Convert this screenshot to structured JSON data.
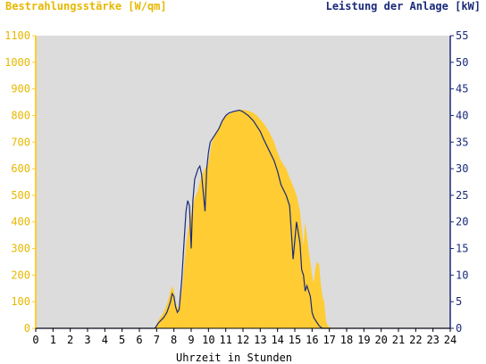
{
  "chart_data": {
    "type": "area",
    "left_axis_label": "Bestrahlungsstärke [W/qm]",
    "right_axis_label": "Leistung der Anlage [kW]",
    "xlabel": "Uhrzeit in Stunden",
    "x_ticks": [
      "0",
      "1",
      "2",
      "3",
      "4",
      "5",
      "6",
      "7",
      "8",
      "9",
      "10",
      "11",
      "12",
      "13",
      "14",
      "15",
      "16",
      "17",
      "18",
      "19",
      "20",
      "21",
      "22",
      "23",
      "24"
    ],
    "y_left_ticks": [
      "0",
      "100",
      "200",
      "300",
      "400",
      "500",
      "600",
      "700",
      "800",
      "900",
      "1000",
      "1100"
    ],
    "y_right_ticks": [
      "0",
      "5",
      "10",
      "15",
      "20",
      "25",
      "30",
      "35",
      "40",
      "45",
      "50",
      "55"
    ],
    "xlim": [
      0,
      24
    ],
    "y_left_lim": [
      0,
      1100
    ],
    "y_right_lim": [
      0,
      55
    ],
    "grid": false,
    "colors": {
      "irradiance_fill": "#ffcc33",
      "power_line": "#1a2a7a",
      "plot_bg": "#dcdcdc",
      "left_axis": "#ffcc33",
      "right_axis": "#1a2a7a",
      "text_left": "#e6b800",
      "text_right": "#1a2a7a",
      "text_x": "#000000"
    },
    "series": [
      {
        "axis": "left",
        "kind": "area",
        "x": [
          0,
          6.9,
          7.1,
          7.4,
          7.6,
          7.8,
          7.9,
          8.0,
          8.1,
          8.2,
          8.3,
          8.5,
          8.7,
          8.8,
          8.9,
          9.0,
          9.1,
          9.2,
          9.4,
          9.5,
          9.6,
          9.8,
          10.0,
          10.1,
          10.2,
          10.4,
          10.6,
          10.8,
          11.0,
          11.2,
          11.5,
          11.8,
          12.0,
          12.3,
          12.6,
          12.8,
          13.0,
          13.2,
          13.5,
          13.8,
          14.0,
          14.2,
          14.5,
          14.7,
          14.9,
          15.1,
          15.3,
          15.5,
          15.6,
          15.7,
          15.8,
          15.9,
          16.0,
          16.1,
          16.2,
          16.3,
          16.4,
          16.5,
          16.6,
          16.7,
          16.8,
          16.9,
          17.0,
          17.1,
          17.3,
          17.5,
          18,
          24
        ],
        "values": [
          0,
          0,
          30,
          60,
          90,
          140,
          160,
          140,
          100,
          80,
          75,
          160,
          310,
          360,
          400,
          430,
          460,
          490,
          520,
          550,
          570,
          600,
          620,
          660,
          700,
          730,
          750,
          775,
          800,
          805,
          815,
          820,
          822,
          818,
          810,
          800,
          785,
          770,
          740,
          700,
          660,
          630,
          600,
          565,
          535,
          500,
          440,
          310,
          400,
          350,
          290,
          250,
          200,
          170,
          230,
          250,
          240,
          170,
          120,
          100,
          30,
          10,
          5,
          3,
          0,
          0,
          0,
          0
        ]
      },
      {
        "axis": "right",
        "kind": "line",
        "x": [
          0,
          6.9,
          7.1,
          7.4,
          7.6,
          7.8,
          7.9,
          8.0,
          8.1,
          8.2,
          8.3,
          8.45,
          8.6,
          8.7,
          8.8,
          8.9,
          9.0,
          9.05,
          9.1,
          9.2,
          9.3,
          9.4,
          9.5,
          9.6,
          9.8,
          9.9,
          10.0,
          10.05,
          10.1,
          10.2,
          10.4,
          10.6,
          10.8,
          11.0,
          11.2,
          11.5,
          11.8,
          12.0,
          12.3,
          12.6,
          12.8,
          13.0,
          13.2,
          13.5,
          13.8,
          14.0,
          14.2,
          14.5,
          14.7,
          14.9,
          15.1,
          15.3,
          15.4,
          15.5,
          15.6,
          15.7,
          15.8,
          15.9,
          16.0,
          16.1,
          16.2,
          16.3,
          16.4,
          16.5,
          16.6,
          16.7,
          16.8,
          16.9,
          17.0,
          17.1,
          17.3,
          17.5,
          18,
          24
        ],
        "values": [
          0,
          0,
          1,
          2,
          3,
          5,
          6.5,
          6,
          4,
          3,
          3.5,
          9,
          17,
          22,
          24,
          23,
          15,
          20,
          24,
          28,
          29,
          30,
          30.5,
          29,
          22,
          30,
          33,
          34,
          35,
          35.5,
          36.5,
          37.5,
          39,
          40,
          40.5,
          40.8,
          41,
          40.7,
          40,
          39,
          38,
          37,
          35.5,
          33.5,
          31.5,
          29.5,
          27,
          25,
          23,
          13,
          20,
          16,
          11,
          10,
          7,
          8,
          7,
          6,
          3,
          2,
          1.5,
          1,
          0.5,
          0.2,
          0,
          0,
          0,
          0,
          0,
          0,
          0,
          0,
          0,
          0
        ]
      }
    ]
  }
}
